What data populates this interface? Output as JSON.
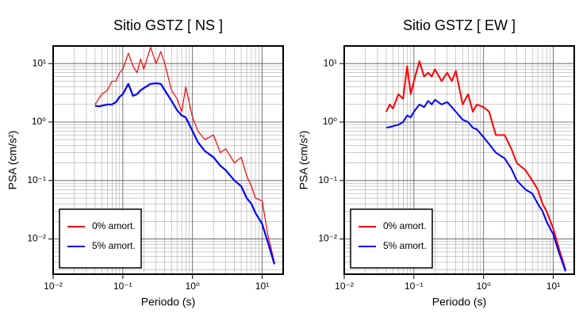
{
  "chart_data": [
    {
      "type": "line",
      "title": "Sitio GSTZ [ NS ]",
      "x_label": "Periodo (s)",
      "y_label": "PSA (cm/s²)",
      "log_x": true,
      "log_y": true,
      "grid": true,
      "legend": "lower left",
      "xlim": [
        0.01,
        20
      ],
      "ylim": [
        0.0025,
        20
      ],
      "xticks": [
        {
          "value": 0.01,
          "label": "10⁻²"
        },
        {
          "value": 0.1,
          "label": "10⁻¹"
        },
        {
          "value": 1,
          "label": "10⁰"
        },
        {
          "value": 10,
          "label": "10¹"
        }
      ],
      "yticks": [
        {
          "value": 0.01,
          "label": "10⁻²"
        },
        {
          "value": 0.1,
          "label": "10⁻¹"
        },
        {
          "value": 1,
          "label": "10⁰"
        },
        {
          "value": 10,
          "label": "10¹"
        }
      ],
      "x": [
        0.04,
        0.045,
        0.05,
        0.06,
        0.07,
        0.08,
        0.09,
        0.1,
        0.12,
        0.14,
        0.16,
        0.18,
        0.2,
        0.25,
        0.3,
        0.35,
        0.4,
        0.5,
        0.6,
        0.7,
        0.8,
        1,
        1.2,
        1.5,
        2,
        2.5,
        3,
        4,
        5,
        6,
        7,
        8,
        10,
        12,
        15
      ],
      "series": [
        {
          "name": "0% amort.",
          "color": "#ff0000",
          "linewidth": 1.2,
          "values": [
            2,
            2.5,
            3,
            3.5,
            5,
            5,
            7,
            8,
            15,
            9,
            7,
            12,
            8,
            19,
            10,
            16,
            10,
            3.5,
            2.5,
            1.5,
            4,
            1.2,
            0.7,
            0.5,
            0.6,
            0.3,
            0.35,
            0.2,
            0.25,
            0.12,
            0.08,
            0.05,
            0.045,
            0.012,
            0.004
          ]
        },
        {
          "name": "5% amort.",
          "color": "#0000ff",
          "linewidth": 2.2,
          "values": [
            1.9,
            1.85,
            1.9,
            2,
            2,
            2.2,
            2.7,
            3,
            4.5,
            2.8,
            3,
            3.5,
            3.8,
            4.5,
            4.6,
            4.5,
            3.5,
            2.3,
            1.6,
            1.3,
            1.2,
            0.7,
            0.45,
            0.32,
            0.25,
            0.18,
            0.15,
            0.1,
            0.08,
            0.05,
            0.04,
            0.028,
            0.018,
            0.009,
            0.0037
          ]
        }
      ]
    },
    {
      "type": "line",
      "title": "Sitio GSTZ [ EW ]",
      "x_label": "Periodo (s)",
      "y_label": "PSA (cm/s²)",
      "log_x": true,
      "log_y": true,
      "grid": true,
      "legend": "lower left",
      "xlim": [
        0.01,
        20
      ],
      "ylim": [
        0.0025,
        20
      ],
      "xticks": [
        {
          "value": 0.01,
          "label": "10⁻²"
        },
        {
          "value": 0.1,
          "label": "10⁻¹"
        },
        {
          "value": 1,
          "label": "10⁰"
        },
        {
          "value": 10,
          "label": "10¹"
        }
      ],
      "yticks": [
        {
          "value": 0.01,
          "label": "10⁻²"
        },
        {
          "value": 0.1,
          "label": "10⁻¹"
        },
        {
          "value": 1,
          "label": "10⁰"
        },
        {
          "value": 10,
          "label": "10¹"
        }
      ],
      "x": [
        0.04,
        0.045,
        0.05,
        0.06,
        0.07,
        0.08,
        0.09,
        0.1,
        0.12,
        0.14,
        0.16,
        0.18,
        0.2,
        0.25,
        0.3,
        0.35,
        0.4,
        0.5,
        0.6,
        0.7,
        0.8,
        1,
        1.2,
        1.5,
        2,
        2.5,
        3,
        4,
        5,
        6,
        7,
        8,
        10,
        12,
        15
      ],
      "series": [
        {
          "name": "0% amort.",
          "color": "#ff0000",
          "linewidth": 2,
          "values": [
            1.5,
            2,
            1.7,
            3,
            2.5,
            9,
            3,
            5,
            11,
            6,
            7,
            6,
            8,
            5,
            7,
            5,
            7.5,
            2,
            3,
            1.5,
            2,
            1.8,
            1.5,
            0.6,
            0.6,
            0.35,
            0.2,
            0.15,
            0.1,
            0.07,
            0.04,
            0.03,
            0.015,
            0.007,
            0.003
          ]
        },
        {
          "name": "5% amort.",
          "color": "#0000ff",
          "linewidth": 2,
          "values": [
            0.8,
            0.82,
            0.85,
            0.9,
            1,
            1.3,
            1.2,
            1.5,
            2,
            1.8,
            2.3,
            2,
            2.4,
            2,
            2.2,
            1.8,
            1.5,
            1.1,
            1,
            0.8,
            0.75,
            0.55,
            0.42,
            0.3,
            0.24,
            0.16,
            0.1,
            0.07,
            0.06,
            0.04,
            0.03,
            0.02,
            0.012,
            0.006,
            0.0028
          ]
        }
      ]
    }
  ]
}
